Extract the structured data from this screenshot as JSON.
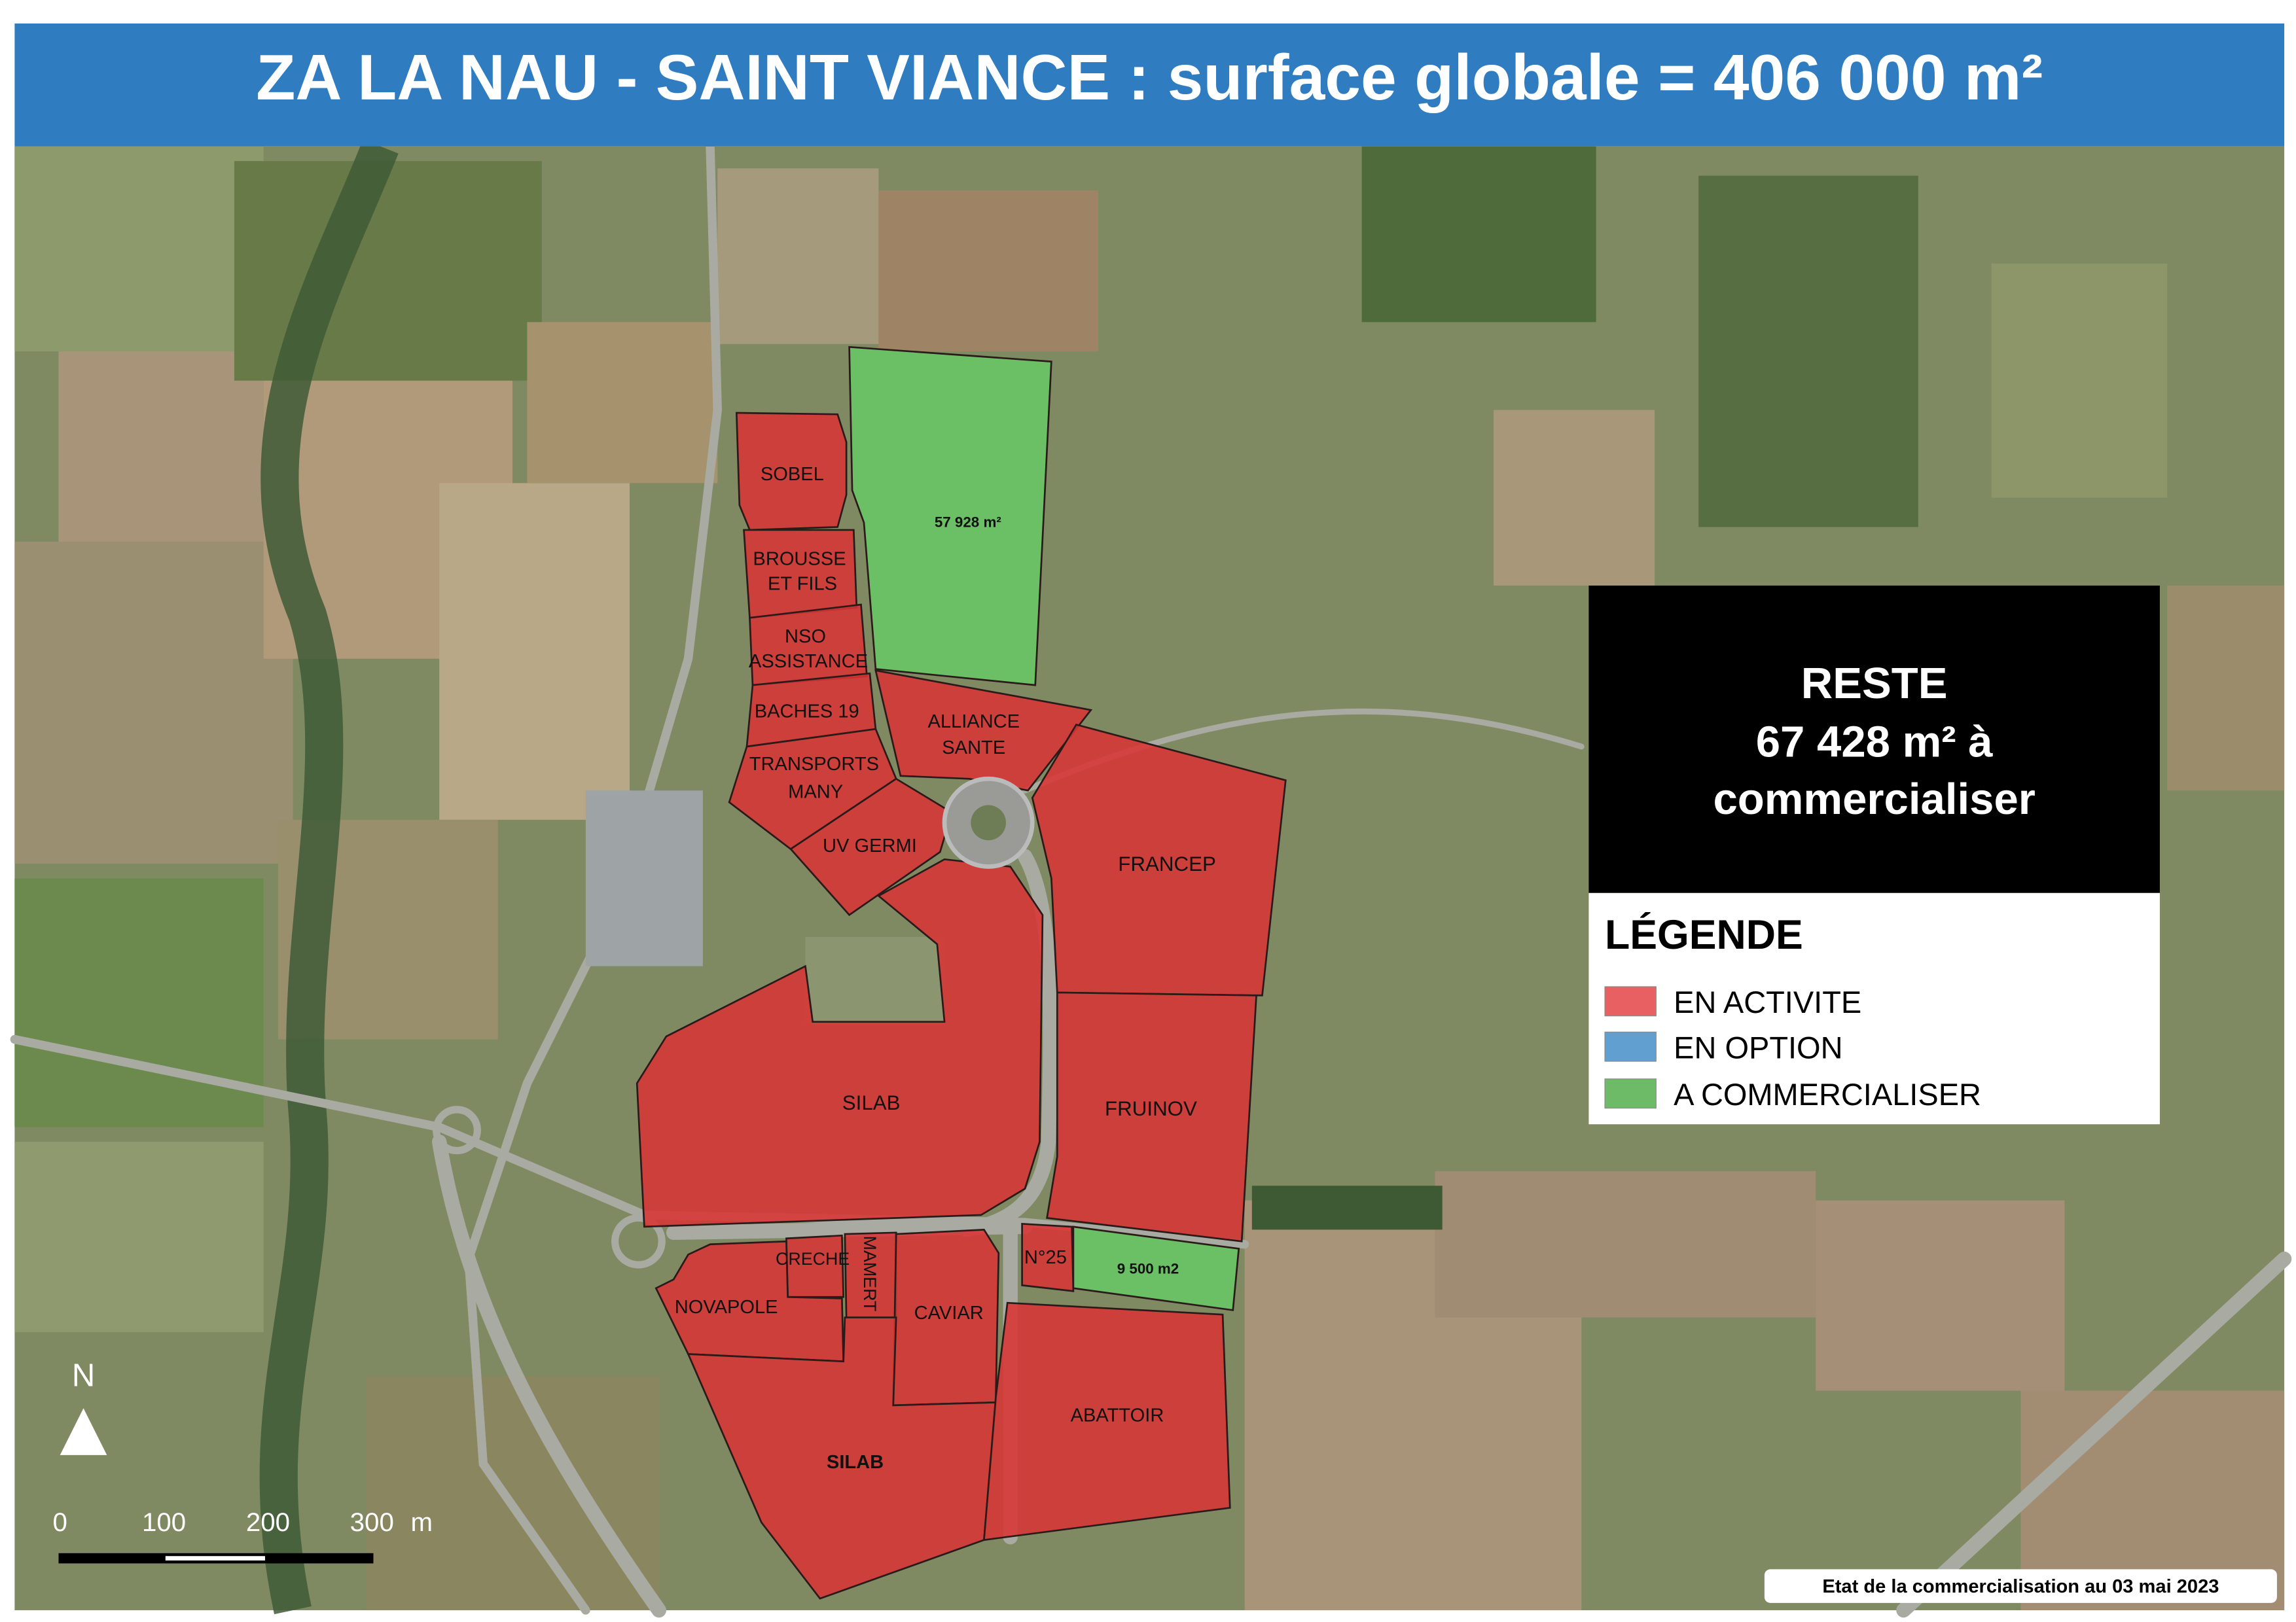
{
  "title": "ZA LA NAU - SAINT VIANCE : surface globale = 406 000 m²",
  "summary_box": {
    "line1": "RESTE",
    "line2": "67 428 m² à",
    "line3": "commercialiser"
  },
  "legend": {
    "title": "LÉGENDE",
    "items": [
      {
        "label": "EN ACTIVITE",
        "color": "#e96062"
      },
      {
        "label": "EN OPTION",
        "color": "#619fd0"
      },
      {
        "label": "A COMMERCIALISER",
        "color": "#6dbb67"
      }
    ]
  },
  "parcels": {
    "sobel": "SOBEL",
    "brousse_1": "BROUSSE",
    "brousse_2": "ET FILS",
    "nso_1": "NSO",
    "nso_2": "ASSISTANCE",
    "baches": "BACHES 19",
    "transports_1": "TRANSPORTS",
    "transports_2": "MANY",
    "uv_germi": "UV GERMI",
    "alliance_1": "ALLIANCE",
    "alliance_2": "SANTE",
    "francep": "FRANCEP",
    "fruinov": "FRUINOV",
    "silab_middle": "SILAB",
    "silab_bottom": "SILAB",
    "n25": "N°25",
    "creche": "CRECHE",
    "mamert": "MAMERT",
    "novapole": "NOVAPOLE",
    "caviar": "CAVIAR",
    "abattoir": "ABATTOIR",
    "green_north": "57 928 m²",
    "green_south": "9 500 m2"
  },
  "north_arrow": "N",
  "scale_bar": {
    "ticks": [
      "0",
      "100",
      "200",
      "300"
    ],
    "unit": "m"
  },
  "footer": "Etat de la commercialisation au 03 mai 2023",
  "colors": {
    "title_bar": "#2f7dc0",
    "activite": "#d83434",
    "commercialiser": "#6bbf65"
  }
}
